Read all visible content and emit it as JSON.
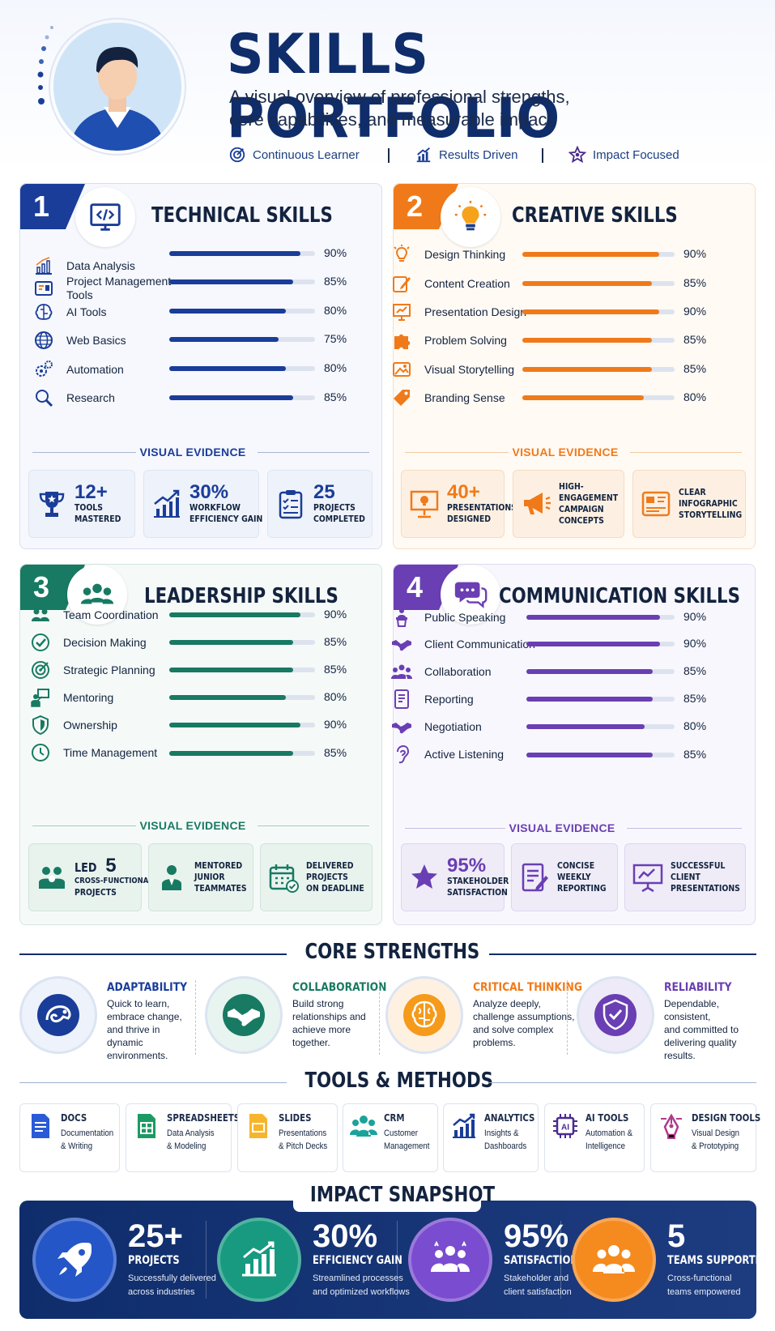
{
  "header": {
    "title": "SKILLS PORTFOLIO",
    "subtitle_line1": "A visual overview of professional strengths,",
    "subtitle_line2": "core capabilities, and measurable impact.",
    "tags": [
      "Continuous Learner",
      "Results Driven",
      "Impact Focused"
    ]
  },
  "colors": {
    "navy": "#0f2d6b",
    "tech": "#1a3d99",
    "creative": "#f07a1a",
    "leadership": "#187a62",
    "communication": "#6a3fb3"
  },
  "technical": {
    "number": "1",
    "title": "TECHNICAL SKILLS",
    "skills": [
      {
        "label": "Data Analysis",
        "percent": "90%",
        "value": 90
      },
      {
        "label": "Project Management Tools",
        "percent": "85%",
        "value": 85
      },
      {
        "label": "AI Tools",
        "percent": "80%",
        "value": 80
      },
      {
        "label": "Web Basics",
        "percent": "75%",
        "value": 75
      },
      {
        "label": "Automation",
        "percent": "80%",
        "value": 80
      },
      {
        "label": "Research",
        "percent": "85%",
        "value": 85
      }
    ],
    "evidence_title": "VISUAL EVIDENCE",
    "evidence": [
      {
        "big": "12+",
        "line1": "TOOLS",
        "line2": "MASTERED"
      },
      {
        "big": "30%",
        "line1": "WORKFLOW",
        "line2": "EFFICIENCY GAIN"
      },
      {
        "big": "25",
        "line1": "PROJECTS",
        "line2": "COMPLETED"
      }
    ]
  },
  "creative": {
    "number": "2",
    "title": "CREATIVE SKILLS",
    "skills": [
      {
        "label": "Design Thinking",
        "percent": "90%",
        "value": 90
      },
      {
        "label": "Content Creation",
        "percent": "85%",
        "value": 85
      },
      {
        "label": "Presentation Design",
        "percent": "90%",
        "value": 90
      },
      {
        "label": "Problem Solving",
        "percent": "85%",
        "value": 85
      },
      {
        "label": "Visual Storytelling",
        "percent": "85%",
        "value": 85
      },
      {
        "label": "Branding Sense",
        "percent": "80%",
        "value": 80
      }
    ],
    "evidence_title": "VISUAL EVIDENCE",
    "evidence": [
      {
        "big": "40+",
        "line1": "PRESENTATIONS",
        "line2": "DESIGNED"
      },
      {
        "line1": "HIGH-",
        "line2": "ENGAGEMENT",
        "line3": "CAMPAIGN",
        "line4": "CONCEPTS"
      },
      {
        "line1": "CLEAR",
        "line2": "INFOGRAPHIC",
        "line3": "STORYTELLING"
      }
    ]
  },
  "leadership": {
    "number": "3",
    "title": "LEADERSHIP SKILLS",
    "skills": [
      {
        "label": "Team Coordination",
        "percent": "90%",
        "value": 90
      },
      {
        "label": "Decision Making",
        "percent": "85%",
        "value": 85
      },
      {
        "label": "Strategic Planning",
        "percent": "85%",
        "value": 85
      },
      {
        "label": "Mentoring",
        "percent": "80%",
        "value": 80
      },
      {
        "label": "Ownership",
        "percent": "90%",
        "value": 90
      },
      {
        "label": "Time Management",
        "percent": "85%",
        "value": 85
      }
    ],
    "evidence_title": "VISUAL EVIDENCE",
    "evidence": [
      {
        "prefix": "LED",
        "big": "5",
        "line1": "CROSS-FUNCTIONAL",
        "line2": "PROJECTS"
      },
      {
        "line1": "MENTORED",
        "line2": "JUNIOR",
        "line3": "TEAMMATES"
      },
      {
        "line1": "DELIVERED",
        "line2": "PROJECTS",
        "line3": "ON DEADLINE"
      }
    ]
  },
  "communication": {
    "number": "4",
    "title": "COMMUNICATION SKILLS",
    "skills": [
      {
        "label": "Public Speaking",
        "percent": "90%",
        "value": 90
      },
      {
        "label": "Client Communication",
        "percent": "90%",
        "value": 90
      },
      {
        "label": "Collaboration",
        "percent": "85%",
        "value": 85
      },
      {
        "label": "Reporting",
        "percent": "85%",
        "value": 85
      },
      {
        "label": "Negotiation",
        "percent": "80%",
        "value": 80
      },
      {
        "label": "Active Listening",
        "percent": "85%",
        "value": 85
      }
    ],
    "evidence_title": "VISUAL EVIDENCE",
    "evidence": [
      {
        "big": "95%",
        "line1": "STAKEHOLDER",
        "line2": "SATISFACTION"
      },
      {
        "line1": "CONCISE",
        "line2": "WEEKLY",
        "line3": "REPORTING"
      },
      {
        "line1": "SUCCESSFUL",
        "line2": "CLIENT",
        "line3": "PRESENTATIONS"
      }
    ]
  },
  "core_strengths": {
    "title": "CORE STRENGTHS",
    "items": [
      {
        "title": "ADAPTABILITY",
        "l1": "Quick to learn,",
        "l2": "embrace change,",
        "l3": "and thrive in",
        "l4": "dynamic environments."
      },
      {
        "title": "COLLABORATION",
        "l1": "Build strong",
        "l2": "relationships and",
        "l3": "achieve more",
        "l4": "together."
      },
      {
        "title": "CRITICAL THINKING",
        "l1": "Analyze deeply,",
        "l2": "challenge assumptions,",
        "l3": "and solve complex",
        "l4": "problems."
      },
      {
        "title": "RELIABILITY",
        "l1": "Dependable, consistent,",
        "l2": "and committed to",
        "l3": "delivering quality",
        "l4": "results."
      }
    ]
  },
  "tools": {
    "title": "TOOLS & METHODS",
    "items": [
      {
        "title": "DOCS",
        "l1": "Documentation",
        "l2": "& Writing"
      },
      {
        "title": "SPREADSHEETS",
        "l1": "Data Analysis",
        "l2": "& Modeling"
      },
      {
        "title": "SLIDES",
        "l1": "Presentations",
        "l2": "& Pitch Decks"
      },
      {
        "title": "CRM",
        "l1": "Customer",
        "l2": "Management"
      },
      {
        "title": "ANALYTICS",
        "l1": "Insights &",
        "l2": "Dashboards"
      },
      {
        "title": "AI TOOLS",
        "l1": "Automation &",
        "l2": "Intelligence"
      },
      {
        "title": "DESIGN TOOLS",
        "l1": "Visual Design",
        "l2": "& Prototyping"
      }
    ]
  },
  "impact": {
    "title": "IMPACT SNAPSHOT",
    "items": [
      {
        "big": "25+",
        "label": "PROJECTS",
        "l1": "Successfully delivered",
        "l2": "across industries"
      },
      {
        "big": "30%",
        "label": "EFFICIENCY GAIN",
        "l1": "Streamlined processes",
        "l2": "and optimized workflows"
      },
      {
        "big": "95%",
        "label": "SATISFACTION",
        "l1": "Stakeholder and",
        "l2": "client satisfaction"
      },
      {
        "big": "5",
        "label": "TEAMS SUPPORTED",
        "l1": "Cross-functional",
        "l2": "teams empowered"
      }
    ]
  }
}
